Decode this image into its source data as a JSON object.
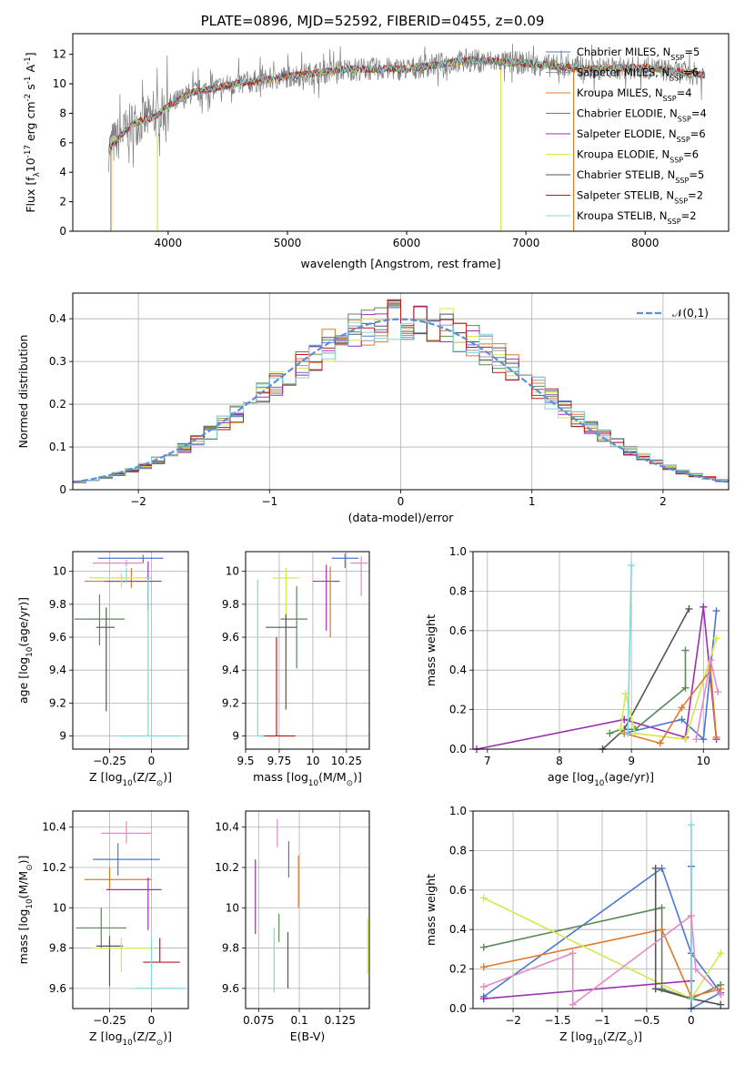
{
  "figure_title": "PLATE=0896, MJD=52592, FIBERID=0455, z=0.09",
  "model_colors": [
    "#4878d0",
    "#9a9a9a",
    "#e07a2b",
    "#5a8a5a",
    "#9b30b0",
    "#d4e84a",
    "#555555",
    "#b81c1c",
    "#7fd8d8"
  ],
  "chart_data": [
    {
      "id": "spectrum",
      "type": "line",
      "title": "PLATE=0896, MJD=52592, FIBERID=0455, z=0.09",
      "xlabel": "wavelength [Angstrom, rest frame]",
      "ylabel": "Flux [f$_λ$10$^{-17}$ erg cm$^{-2}$ s$^{-1}$ A$^{-1}$]",
      "xlim": [
        3200,
        8700
      ],
      "ylim": [
        0,
        13.4
      ],
      "xticks": [
        "4000",
        "5000",
        "6000",
        "7000",
        "8000"
      ],
      "yticks": [
        "0",
        "2",
        "4",
        "6",
        "8",
        "10",
        "12"
      ],
      "grid": false,
      "legend_position": "right",
      "series": [
        {
          "name": "Chabrier MILES, N$_{SSP}$=5",
          "color": "#4878d0"
        },
        {
          "name": "Salpeter MILES, N$_{SSP}$=6",
          "color": "#9a9a9a"
        },
        {
          "name": "Kroupa MILES, N$_{SSP}$=4",
          "color": "#e07a2b"
        },
        {
          "name": "Chabrier ELODIE, N$_{SSP}$=4",
          "color": "#5a8a5a"
        },
        {
          "name": "Salpeter ELODIE, N$_{SSP}$=6",
          "color": "#9b30b0"
        },
        {
          "name": "Kroupa ELODIE, N$_{SSP}$=6",
          "color": "#d4e84a"
        },
        {
          "name": "Chabrier STELIB, N$_{SSP}$=5",
          "color": "#555555"
        },
        {
          "name": "Salpeter STELIB, N$_{SSP}$=2",
          "color": "#b81c1c"
        },
        {
          "name": "Kroupa STELIB, N$_{SSP}$=2",
          "color": "#7fd8d8"
        }
      ],
      "continuum": {
        "x": [
          3500,
          3700,
          3900,
          4000,
          4200,
          4500,
          5000,
          5500,
          6000,
          6500,
          7000,
          7500,
          8000,
          8500
        ],
        "y": [
          5.6,
          7.3,
          7.8,
          8.5,
          9.4,
          9.9,
          10.5,
          11.0,
          11.0,
          11.6,
          11.4,
          11.0,
          11.1,
          10.6
        ]
      }
    },
    {
      "id": "residuals",
      "type": "histogram",
      "xlabel": "(data-model)/error",
      "ylabel": "Normed distribution",
      "xlim": [
        -2.5,
        2.5
      ],
      "ylim": [
        0,
        0.46
      ],
      "xticks": [
        -2,
        -1,
        0,
        1,
        2
      ],
      "yticks": [
        0,
        0.1,
        0.2,
        0.3,
        0.4
      ],
      "grid": true,
      "legend": {
        "label": "$\\mathcal{N}(0,1)$",
        "color": "#5b8fd6",
        "style": "dashed"
      },
      "bin_width": 0.1
    },
    {
      "id": "age_vs_Z",
      "type": "errorbar",
      "xlabel": "Z [log$_{10}$($Z/Z_\\odot$)]",
      "ylabel": "age  [log$_{10}$($age/yr$)]",
      "xlim": [
        -0.47,
        0.22
      ],
      "ylim": [
        8.92,
        10.12
      ],
      "xticks": [
        -0.25,
        0.0
      ],
      "yticks": [
        9.0,
        9.2,
        9.4,
        9.6,
        9.8,
        10.0
      ],
      "grid": true,
      "points": [
        {
          "c": 0,
          "x": -0.05,
          "xe": [
            0.27,
            0.12
          ],
          "y": 10.08,
          "ye": [
            0.03,
            0.02
          ]
        },
        {
          "c": 2,
          "x": -0.12,
          "xe": [
            0.28,
            0.12
          ],
          "y": 9.94,
          "ye": [
            0.04,
            0.08
          ]
        },
        {
          "c": 4,
          "x": -0.02,
          "xe": [
            0.26,
            0.08
          ],
          "y": 9.94,
          "ye": [
            0.18,
            0.12
          ]
        },
        {
          "c": 8,
          "x": -0.15,
          "xe": [
            0.22,
            0.15
          ],
          "y": 9.96,
          "ye": [
            0.03,
            0.06
          ]
        },
        {
          "c": 5,
          "x": -0.18,
          "xe": [
            0.18,
            0.15
          ],
          "y": 9.96,
          "ye": [
            0.06,
            0.03
          ]
        },
        {
          "c": 3,
          "x": -0.31,
          "xe": [
            0.15,
            0.15
          ],
          "y": 9.71,
          "ye": [
            0.16,
            0.15
          ]
        },
        {
          "c": 6,
          "x": -0.27,
          "xe": [
            0.06,
            0.05
          ],
          "y": 9.66,
          "ye": [
            0.51,
            0.12
          ]
        },
        {
          "c": 8,
          "x": -0.02,
          "xe": [
            0.18,
            0.19
          ],
          "y": 9.0,
          "ye": [
            0,
            0.95
          ]
        },
        {
          "c": 9,
          "x": -0.15,
          "xe": [
            0.2,
            0.1
          ],
          "y": 10.05,
          "ye": [
            0.02,
            0.02
          ]
        }
      ]
    },
    {
      "id": "age_vs_mass",
      "type": "errorbar",
      "xlabel": "mass [log$_{10}$($M/M_\\odot$)]",
      "ylabel": "",
      "xlim": [
        9.5,
        10.42
      ],
      "ylim": [
        8.92,
        10.12
      ],
      "xticks": [
        9.5,
        9.75,
        10.0,
        10.25
      ],
      "yticks": [
        9.0,
        9.2,
        9.4,
        9.6,
        9.8,
        10.0
      ],
      "grid": true,
      "points": [
        {
          "c": 0,
          "x": 10.24,
          "xe": [
            0.1,
            0.1
          ],
          "y": 10.08,
          "ye": [
            0.06,
            0.03
          ]
        },
        {
          "c": 9,
          "x": 10.36,
          "xe": [
            0.08,
            0.05
          ],
          "y": 10.05,
          "ye": [
            0.2,
            0.04
          ]
        },
        {
          "c": 4,
          "x": 10.1,
          "xe": [
            0.1,
            0.1
          ],
          "y": 9.94,
          "ye": [
            0.3,
            0.1
          ]
        },
        {
          "c": 2,
          "x": 10.13,
          "xe": [
            0,
            0
          ],
          "y": 9.95,
          "ye": [
            0.35,
            0.08
          ]
        },
        {
          "c": 5,
          "x": 9.8,
          "xe": [
            0.1,
            0.1
          ],
          "y": 9.96,
          "ye": [
            0.3,
            0.06
          ]
        },
        {
          "c": 3,
          "x": 9.88,
          "xe": [
            0.12,
            0.08
          ],
          "y": 9.71,
          "ye": [
            0.3,
            0.2
          ]
        },
        {
          "c": 6,
          "x": 9.8,
          "xe": [
            0.15,
            0.08
          ],
          "y": 9.66,
          "ye": [
            0.5,
            0.08
          ]
        },
        {
          "c": 7,
          "x": 9.73,
          "xe": [
            0.13,
            0.14
          ],
          "y": 9.0,
          "ye": [
            0,
            0.6
          ]
        },
        {
          "c": 8,
          "x": 9.59,
          "xe": [
            0,
            0.05
          ],
          "y": 9.0,
          "ye": [
            0,
            0.95
          ]
        }
      ]
    },
    {
      "id": "weight_vs_age",
      "type": "line",
      "xlabel": "age  [log$_{10}$($age/yr$)]",
      "ylabel": "mass weight",
      "xlim": [
        6.8,
        10.35
      ],
      "ylim": [
        0,
        1.0
      ],
      "xticks": [
        7,
        8,
        9,
        10
      ],
      "yticks": [
        "0.0",
        "0.2",
        "0.4",
        "0.6",
        "0.8",
        "1.0"
      ],
      "grid": true,
      "series": [
        {
          "c": 4,
          "x": [
            6.85,
            8.9,
            9.75,
            10.0,
            10.18
          ],
          "y": [
            0.0,
            0.15,
            0.06,
            0.72,
            0.05
          ]
        },
        {
          "c": 0,
          "x": [
            8.9,
            9.7,
            10.0,
            10.18
          ],
          "y": [
            0.08,
            0.15,
            0.05,
            0.7
          ]
        },
        {
          "c": 3,
          "x": [
            8.7,
            8.85,
            9.05,
            9.75,
            9.75
          ],
          "y": [
            0.08,
            0.1,
            0.1,
            0.31,
            0.5
          ]
        },
        {
          "c": 6,
          "x": [
            8.6,
            8.9,
            9.8
          ],
          "y": [
            0.0,
            0.1,
            0.71
          ]
        },
        {
          "c": 5,
          "x": [
            8.85,
            8.92,
            9.05,
            9.75,
            10.18
          ],
          "y": [
            0.1,
            0.28,
            0.08,
            0.05,
            0.56
          ]
        },
        {
          "c": 2,
          "x": [
            8.9,
            9.4,
            9.7,
            10.1,
            10.18
          ],
          "y": [
            0.08,
            0.03,
            0.21,
            0.4,
            0.06
          ]
        },
        {
          "c": 8,
          "x": [
            8.95,
            9.0
          ],
          "y": [
            0.08,
            0.93
          ]
        },
        {
          "c": 9,
          "x": [
            9.9,
            10.1,
            10.2
          ],
          "y": [
            0.05,
            0.45,
            0.29
          ]
        }
      ]
    },
    {
      "id": "mass_vs_Z",
      "type": "errorbar",
      "xlabel": "Z [log$_{10}$($Z/Z_\\odot$)]",
      "ylabel": "mass [log$_{10}$($M/M_\\odot$)]",
      "xlim": [
        -0.47,
        0.22
      ],
      "ylim": [
        9.5,
        10.48
      ],
      "xticks": [
        -0.25,
        0.0
      ],
      "yticks": [
        9.6,
        9.8,
        10.0,
        10.2,
        10.4
      ],
      "grid": true,
      "points": [
        {
          "c": 9,
          "x": -0.15,
          "xe": [
            0.15,
            0.15
          ],
          "y": 10.37,
          "ye": [
            0.05,
            0.06
          ]
        },
        {
          "c": 0,
          "x": -0.2,
          "xe": [
            0.15,
            0.25
          ],
          "y": 10.24,
          "ye": [
            0.08,
            0.08
          ]
        },
        {
          "c": 2,
          "x": -0.25,
          "xe": [
            0.15,
            0.25
          ],
          "y": 10.14,
          "ye": [
            0.05,
            0.06
          ]
        },
        {
          "c": 4,
          "x": -0.02,
          "xe": [
            0.25,
            0.08
          ],
          "y": 10.09,
          "ye": [
            0.2,
            0.06
          ]
        },
        {
          "c": 3,
          "x": -0.3,
          "xe": [
            0.15,
            0.15
          ],
          "y": 9.9,
          "ye": [
            0.1,
            0.1
          ]
        },
        {
          "c": 6,
          "x": -0.25,
          "xe": [
            0.08,
            0.08
          ],
          "y": 9.81,
          "ye": [
            0.2,
            0.05
          ]
        },
        {
          "c": 5,
          "x": -0.18,
          "xe": [
            0.18,
            0.2
          ],
          "y": 9.8,
          "ye": [
            0.12,
            0.05
          ]
        },
        {
          "c": 7,
          "x": 0.05,
          "xe": [
            0.1,
            0.12
          ],
          "y": 9.73,
          "ye": [
            0,
            0.12
          ]
        },
        {
          "c": 8,
          "x": 0.0,
          "xe": [
            0.1,
            0.2
          ],
          "y": 9.6,
          "ye": [
            0,
            0.25
          ]
        }
      ]
    },
    {
      "id": "mass_vs_EBV",
      "type": "errorbar",
      "xlabel": "E(B-V)",
      "ylabel": "",
      "xlim": [
        0.067,
        0.143
      ],
      "ylim": [
        9.5,
        10.48
      ],
      "xticks": [
        0.075,
        0.1,
        0.125
      ],
      "yticks": [
        9.6,
        9.8,
        10.0,
        10.2,
        10.4
      ],
      "grid": true,
      "points": [
        {
          "c": 9,
          "x": 0.0865,
          "xe": [
            0,
            0
          ],
          "y": 10.37,
          "ye": [
            0.07,
            0.07
          ]
        },
        {
          "c": 0,
          "x": 0.0935,
          "xe": [
            0,
            0
          ],
          "y": 10.24,
          "ye": [
            0.09,
            0.09
          ]
        },
        {
          "c": 2,
          "x": 0.0995,
          "xe": [
            0,
            0
          ],
          "y": 10.14,
          "ye": [
            0.14,
            0.12
          ]
        },
        {
          "c": 4,
          "x": 0.073,
          "xe": [
            0,
            0
          ],
          "y": 10.1,
          "ye": [
            0.23,
            0.14
          ]
        },
        {
          "c": 3,
          "x": 0.0875,
          "xe": [
            0,
            0
          ],
          "y": 9.9,
          "ye": [
            0.07,
            0.07
          ]
        },
        {
          "c": 6,
          "x": 0.093,
          "xe": [
            0,
            0
          ],
          "y": 9.8,
          "ye": [
            0.2,
            0.08
          ]
        },
        {
          "c": 8,
          "x": 0.0845,
          "xe": [
            0,
            0
          ],
          "y": 9.8,
          "ye": [
            0.22,
            0.1
          ]
        },
        {
          "c": 5,
          "x": 0.142,
          "xe": [
            0,
            0
          ],
          "y": 9.8,
          "ye": [
            0.13,
            0.15
          ]
        }
      ]
    },
    {
      "id": "weight_vs_Z",
      "type": "line",
      "xlabel": "Z [log$_{10}$($Z/Z_\\odot$)]",
      "ylabel": "mass weight",
      "xlim": [
        -2.45,
        0.42
      ],
      "ylim": [
        0,
        1.0
      ],
      "xticks": [
        -2.0,
        -1.5,
        -1.0,
        -0.5,
        0.0
      ],
      "yticks": [
        "0.0",
        "0.2",
        "0.4",
        "0.6",
        "0.8",
        "1.0"
      ],
      "grid": true,
      "series": [
        {
          "c": 0,
          "x": [
            -2.33,
            -0.33,
            0.0,
            0.33,
            0.0,
            0.0
          ],
          "y": [
            0.06,
            0.71,
            0.28,
            0.08,
            0.0,
            0.72
          ]
        },
        {
          "c": 3,
          "x": [
            -2.33,
            -0.33,
            -0.33,
            0.0,
            0.33
          ],
          "y": [
            0.31,
            0.51,
            0.1,
            0.05,
            0.12
          ]
        },
        {
          "c": 2,
          "x": [
            -2.33,
            -0.33,
            0.0,
            0.33
          ],
          "y": [
            0.21,
            0.4,
            0.06,
            0.1
          ]
        },
        {
          "c": 5,
          "x": [
            -2.33,
            0.0,
            0.33
          ],
          "y": [
            0.56,
            0.05,
            0.28
          ]
        },
        {
          "c": 4,
          "x": [
            -2.33,
            0.0,
            0.0
          ],
          "y": [
            0.05,
            0.14,
            0.05
          ]
        },
        {
          "c": 6,
          "x": [
            -0.4,
            -0.4,
            0.0,
            0.33
          ],
          "y": [
            0.71,
            0.1,
            0.05,
            0.02
          ]
        },
        {
          "c": 8,
          "x": [
            0.0,
            0.0
          ],
          "y": [
            0.05,
            0.93
          ]
        },
        {
          "c": 9,
          "x": [
            -2.33,
            -1.33,
            -1.33,
            0.0,
            0.05,
            0.33
          ],
          "y": [
            0.11,
            0.28,
            0.02,
            0.47,
            0.2,
            0.07
          ]
        }
      ]
    }
  ]
}
